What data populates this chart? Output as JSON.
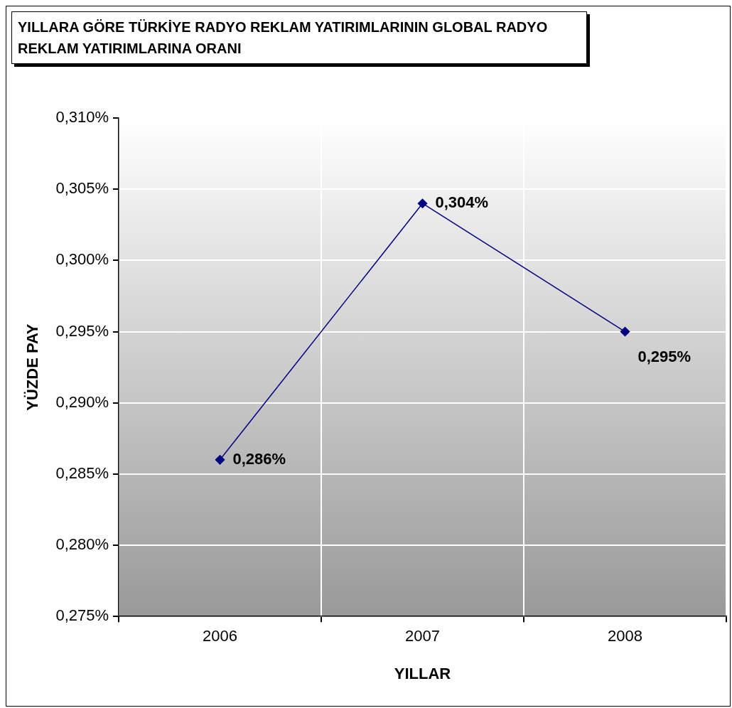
{
  "chart_data": {
    "type": "line",
    "title": "YILLARA GÖRE TÜRKİYE RADYO REKLAM YATIRIMLARININ GLOBAL RADYO REKLAM YATIRIMLARINA ORANI",
    "xlabel": "YILLAR",
    "ylabel": "YÜZDE PAY",
    "categories": [
      "2006",
      "2007",
      "2008"
    ],
    "series": [
      {
        "color": "#000080",
        "values": [
          0.286,
          0.304,
          0.295
        ],
        "value_labels": [
          "0,286%",
          "0,304%",
          "0,295%"
        ]
      }
    ],
    "ylim": [
      0.275,
      0.31
    ],
    "yticks": [
      {
        "value": 0.275,
        "label": "0,275%"
      },
      {
        "value": 0.28,
        "label": "0,280%"
      },
      {
        "value": 0.285,
        "label": "0,285%"
      },
      {
        "value": 0.29,
        "label": "0,290%"
      },
      {
        "value": 0.295,
        "label": "0,295%"
      },
      {
        "value": 0.3,
        "label": "0,300%"
      },
      {
        "value": 0.305,
        "label": "0,305%"
      },
      {
        "value": 0.31,
        "label": "0,310%"
      }
    ],
    "grid": true,
    "legend": false,
    "marker": "diamond",
    "line_style": "solid"
  }
}
